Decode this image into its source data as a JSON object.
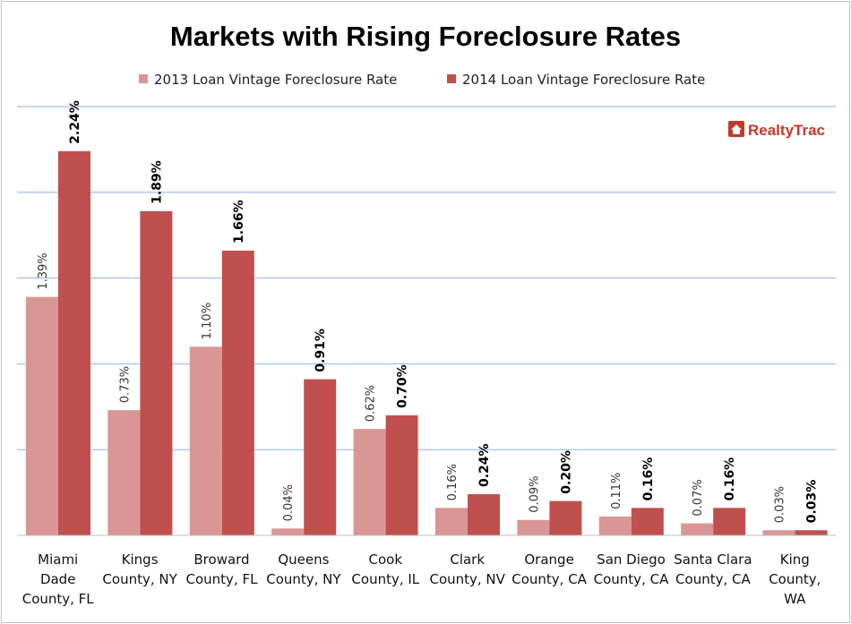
{
  "chart_data": {
    "type": "bar",
    "title": "Markets with Rising Foreclosure Rates",
    "categories": [
      [
        "Miami",
        "Dade",
        "County, FL"
      ],
      [
        "Kings",
        "County, NY"
      ],
      [
        "Broward",
        "County, FL"
      ],
      [
        "Queens",
        "County, NY"
      ],
      [
        "Cook",
        "County, IL"
      ],
      [
        "Clark",
        "County, NV"
      ],
      [
        "Orange",
        "County, CA"
      ],
      [
        "San Diego",
        "County, CA"
      ],
      [
        "Santa Clara",
        "County, CA"
      ],
      [
        "King",
        "County,",
        "WA"
      ]
    ],
    "series": [
      {
        "name": "2013 Loan Vintage Foreclosure Rate",
        "values": [
          1.39,
          0.73,
          1.1,
          0.04,
          0.62,
          0.16,
          0.09,
          0.11,
          0.07,
          0.03
        ],
        "labels": [
          "1.39%",
          "0.73%",
          "1.10%",
          "0.04%",
          "0.62%",
          "0.16%",
          "0.09%",
          "0.11%",
          "0.07%",
          "0.03%"
        ],
        "color": "#d99694"
      },
      {
        "name": "2014 Loan Vintage Foreclosure Rate",
        "values": [
          2.24,
          1.89,
          1.66,
          0.91,
          0.7,
          0.24,
          0.2,
          0.16,
          0.16,
          0.03
        ],
        "labels": [
          "2.24%",
          "1.89%",
          "1.66%",
          "0.91%",
          "0.70%",
          "0.24%",
          "0.20%",
          "0.16%",
          "0.16%",
          "0.03%"
        ],
        "color": "#c0504d"
      }
    ],
    "ylim": [
      0,
      2.5
    ],
    "gridlines": [
      0.5,
      1.0,
      1.5,
      2.0,
      2.5
    ],
    "grid": true,
    "gridline_color": "#8eb4e3",
    "legend_position": "top",
    "xlabel": "",
    "ylabel": ""
  },
  "logo": {
    "text": "RealtyTrac",
    "color": "#c0392b"
  }
}
